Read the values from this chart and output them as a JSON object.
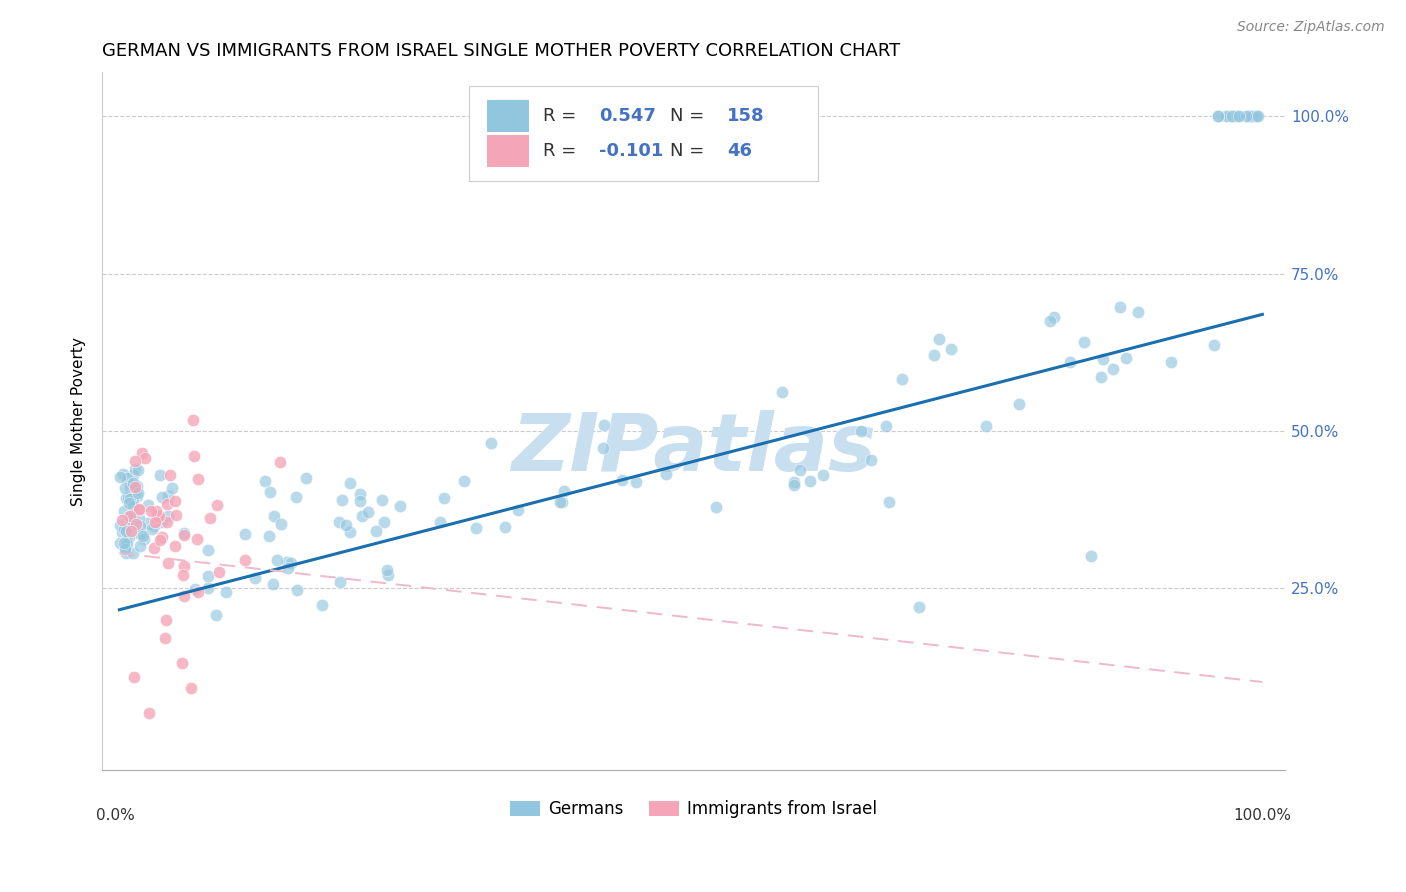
{
  "title": "GERMAN VS IMMIGRANTS FROM ISRAEL SINGLE MOTHER POVERTY CORRELATION CHART",
  "source": "Source: ZipAtlas.com",
  "ylabel": "Single Mother Poverty",
  "legend_label1": "Germans",
  "legend_label2": "Immigrants from Israel",
  "R1": 0.547,
  "N1": 158,
  "R2": -0.101,
  "N2": 46,
  "blue_color": "#92c5de",
  "pink_color": "#f4a5b8",
  "trendline1_color": "#1a6faf",
  "trendline2_color": "#e8547a",
  "trendline2_dash_color": "#f0b8c8",
  "tick_color": "#4472c4",
  "watermark_color": "#c8dff0",
  "title_fontsize": 13,
  "axis_label_fontsize": 11,
  "tick_label_fontsize": 11,
  "legend_fontsize": 12,
  "stats_fontsize": 13,
  "scatter_size": 80,
  "scatter_alpha": 0.65,
  "trendline1_y0": 0.215,
  "trendline1_y1": 0.685,
  "trendline2_y0": 0.305,
  "trendline2_y1": 0.1,
  "ylim_min": -0.04,
  "ylim_max": 1.07,
  "xlim_min": -0.015,
  "xlim_max": 1.02
}
